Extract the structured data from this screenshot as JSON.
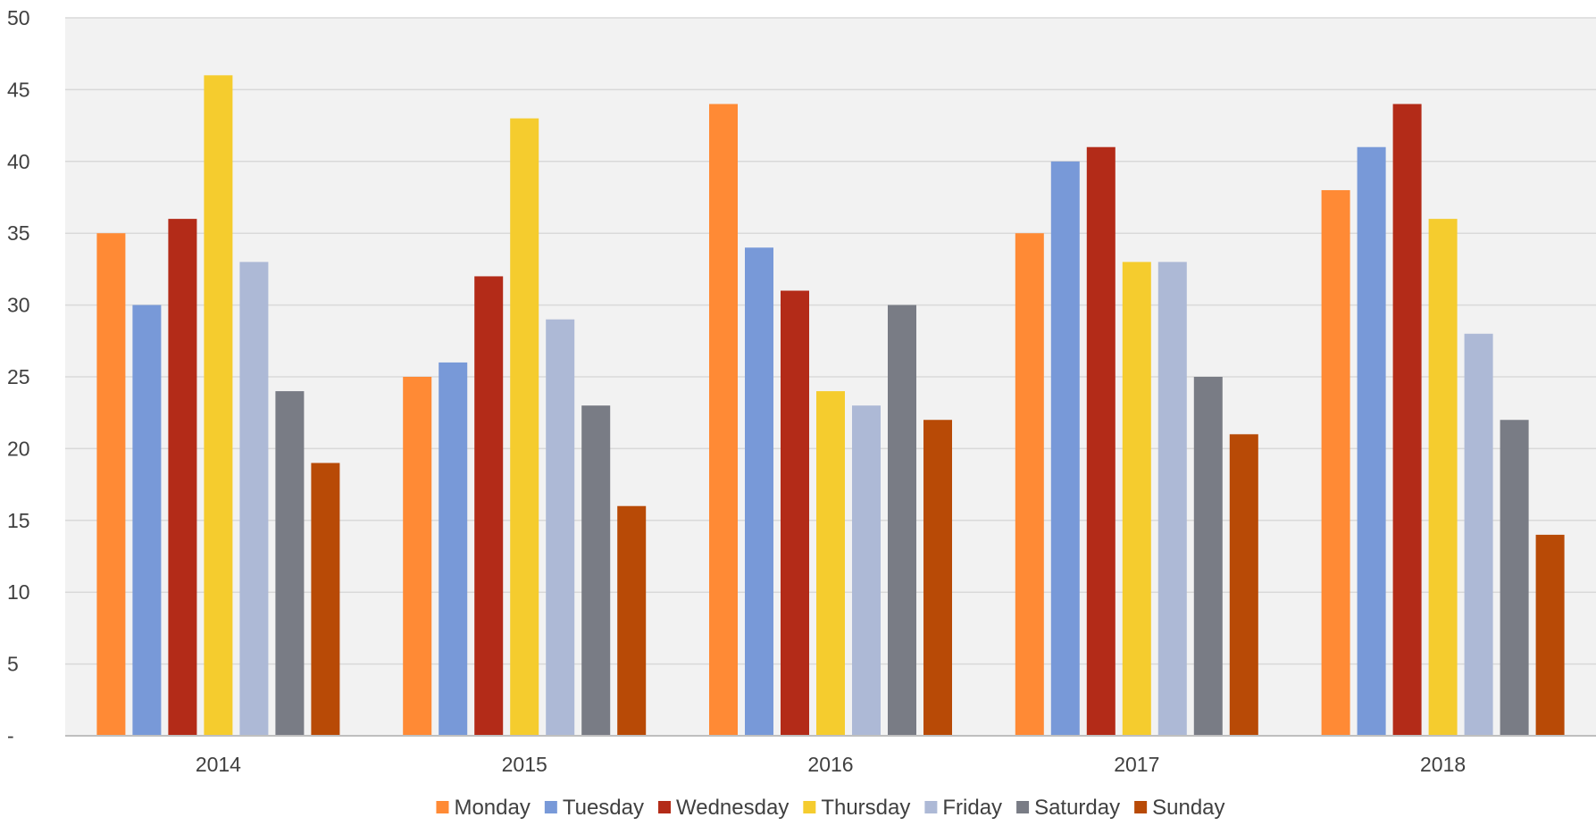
{
  "chart_data": {
    "type": "bar",
    "title": "",
    "xlabel": "",
    "ylabel": "",
    "categories": [
      "2014",
      "2015",
      "2016",
      "2017",
      "2018"
    ],
    "ylim": [
      0,
      50
    ],
    "yticks": [
      0,
      5,
      10,
      15,
      20,
      25,
      30,
      35,
      40,
      45,
      50
    ],
    "ytick_labels": [
      "-",
      "5",
      "10",
      "15",
      "20",
      "25",
      "30",
      "35",
      "40",
      "45",
      "50"
    ],
    "grid": true,
    "legend_position": "bottom",
    "plot_background": "#f2f2f2",
    "series": [
      {
        "name": "Monday",
        "color": "#ff8a35",
        "values": [
          35,
          25,
          44,
          35,
          38
        ]
      },
      {
        "name": "Tuesday",
        "color": "#7899d8",
        "values": [
          30,
          26,
          34,
          40,
          41
        ]
      },
      {
        "name": "Wednesday",
        "color": "#b32b18",
        "values": [
          36,
          32,
          31,
          41,
          44
        ]
      },
      {
        "name": "Thursday",
        "color": "#f5cc2e",
        "values": [
          46,
          43,
          24,
          33,
          36
        ]
      },
      {
        "name": "Friday",
        "color": "#adb9d6",
        "values": [
          33,
          29,
          23,
          33,
          28
        ]
      },
      {
        "name": "Saturday",
        "color": "#797c85",
        "values": [
          24,
          23,
          30,
          25,
          22
        ]
      },
      {
        "name": "Sunday",
        "color": "#b84a06",
        "values": [
          19,
          16,
          22,
          21,
          14
        ]
      }
    ]
  }
}
